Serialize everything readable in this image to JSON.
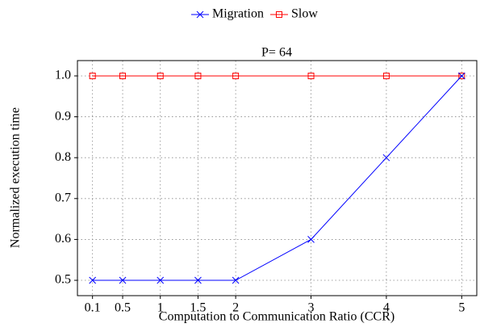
{
  "chart_data": {
    "type": "line",
    "title": "P= 64",
    "xlabel": "Computation to Communication Ratio (CCR)",
    "ylabel": "Normalized execution time",
    "x": [
      0.1,
      0.5,
      1,
      1.5,
      2,
      3,
      4,
      5
    ],
    "series": [
      {
        "name": "Migration",
        "color": "#0000ff",
        "marker": "x",
        "values": [
          0.5,
          0.5,
          0.5,
          0.5,
          0.5,
          0.6,
          0.8,
          1.0
        ]
      },
      {
        "name": "Slow",
        "color": "#ff0000",
        "marker": "square",
        "values": [
          1.0,
          1.0,
          1.0,
          1.0,
          1.0,
          1.0,
          1.0,
          1.0
        ]
      }
    ],
    "xlim": [
      -0.1,
      5.2
    ],
    "xticks": [
      0.1,
      0.5,
      1,
      1.5,
      2,
      3,
      4,
      5
    ],
    "ylim": [
      0.4625,
      1.0375
    ],
    "yticks": [
      0.5,
      0.6,
      0.7,
      0.8,
      0.9,
      {
        "value": 1,
        "label": "1.0"
      }
    ],
    "grid": true,
    "legend": "top"
  }
}
